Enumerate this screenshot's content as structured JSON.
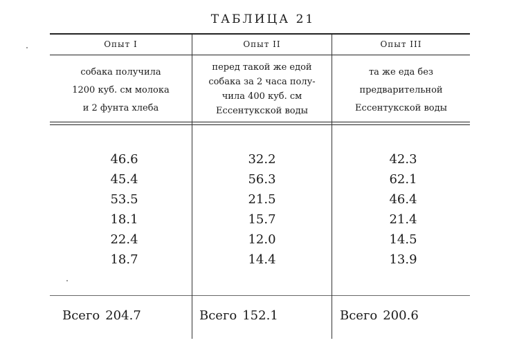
{
  "title": "ТАБЛИЦА 21",
  "columns": [
    {
      "header": "Опыт I",
      "description": [
        "собака получила",
        "1200 куб. см молока",
        "и 2 фунта хлеба"
      ],
      "values": [
        "46.6",
        "45.4",
        "53.5",
        "18.1",
        "22.4",
        "18.7"
      ],
      "total_label": "Всего",
      "total_value": "204.7"
    },
    {
      "header": "Опыт II",
      "description": [
        "перед такой же едой",
        "собака за 2 часа полу-",
        "чила 400 куб. см",
        "Ессентукской воды"
      ],
      "values": [
        "32.2",
        "56.3",
        "21.5",
        "15.7",
        "12.0",
        "14.4"
      ],
      "total_label": "Всего",
      "total_value": "152.1"
    },
    {
      "header": "Опыт III",
      "description": [
        "та же еда без",
        "предварительной",
        "Ессентукской воды"
      ],
      "values": [
        "42.3",
        "62.1",
        "46.4",
        "21.4",
        "14.5",
        "13.9"
      ],
      "total_label": "Всего",
      "total_value": "200.6"
    }
  ]
}
